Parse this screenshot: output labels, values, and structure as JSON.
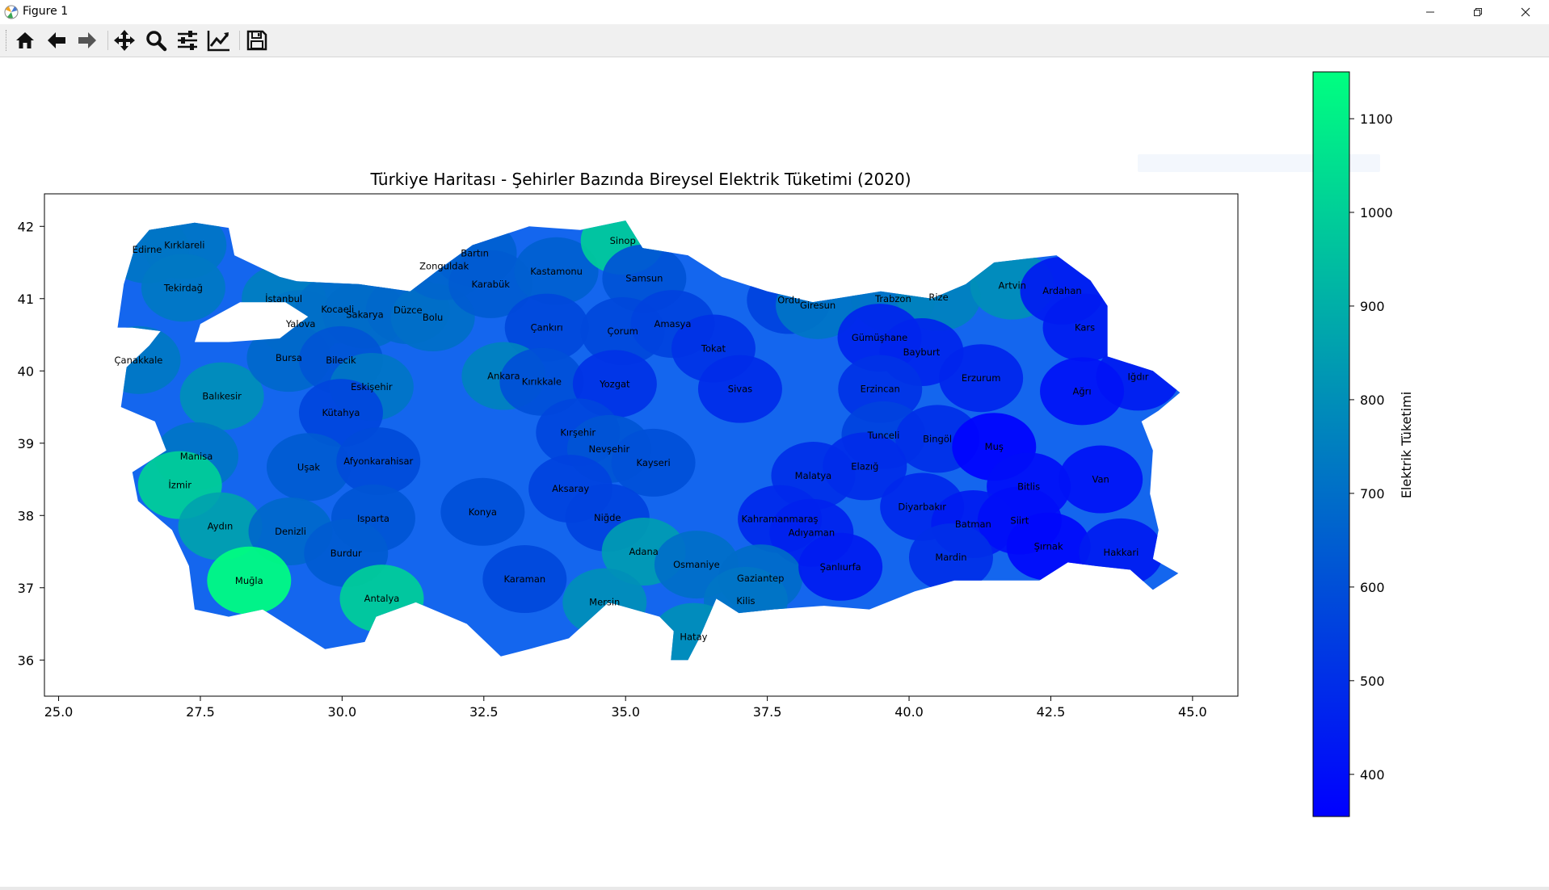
{
  "window": {
    "title": "Figure 1",
    "controls": [
      "minimize",
      "maximize",
      "close"
    ]
  },
  "toolbar": {
    "items": [
      {
        "name": "home",
        "icon": "home-icon"
      },
      {
        "name": "back",
        "icon": "arrow-left-icon"
      },
      {
        "name": "forward",
        "icon": "arrow-right-icon"
      },
      {
        "name": "pan",
        "icon": "move-icon"
      },
      {
        "name": "zoom",
        "icon": "magnifier-icon"
      },
      {
        "name": "configure-subplots",
        "icon": "sliders-icon"
      },
      {
        "name": "edit-axis",
        "icon": "line-chart-icon"
      },
      {
        "name": "save",
        "icon": "floppy-icon"
      }
    ]
  },
  "chart_data": {
    "type": "choropleth",
    "title": "Türkiye Haritası - Şehirler Bazında Bireysel Elektrik Tüketimi (2020)",
    "xlim": [
      24.75,
      45.8
    ],
    "ylim": [
      35.5,
      42.45
    ],
    "xticks": [
      "25.0",
      "27.5",
      "30.0",
      "32.5",
      "35.0",
      "37.5",
      "40.0",
      "42.5",
      "45.0"
    ],
    "yticks": [
      "36",
      "37",
      "38",
      "39",
      "40",
      "41",
      "42"
    ],
    "colorbar": {
      "label": "Elektrik Tüketimi",
      "min": 355,
      "max": 1150,
      "ticks": [
        "400",
        "500",
        "600",
        "700",
        "800",
        "900",
        "1000",
        "1100"
      ],
      "colormap": "winter",
      "color_low": "#0000ff",
      "color_high": "#00ff80"
    },
    "cities": [
      {
        "name": "Kırklareli",
        "lon": 27.22,
        "lat": 41.74,
        "value": 720
      },
      {
        "name": "Edirne",
        "lon": 26.56,
        "lat": 41.68,
        "value": 720
      },
      {
        "name": "Tekirdağ",
        "lon": 27.2,
        "lat": 41.15,
        "value": 730
      },
      {
        "name": "İstanbul",
        "lon": 28.97,
        "lat": 41.0,
        "value": 750
      },
      {
        "name": "Yalova",
        "lon": 29.27,
        "lat": 40.65,
        "value": 720
      },
      {
        "name": "Kocaeli",
        "lon": 29.92,
        "lat": 40.85,
        "value": 700
      },
      {
        "name": "Sakarya",
        "lon": 30.4,
        "lat": 40.78,
        "value": 690
      },
      {
        "name": "Düzce",
        "lon": 31.16,
        "lat": 40.84,
        "value": 680
      },
      {
        "name": "Bolu",
        "lon": 31.6,
        "lat": 40.74,
        "value": 700
      },
      {
        "name": "Zonguldak",
        "lon": 31.8,
        "lat": 41.45,
        "value": 670
      },
      {
        "name": "Bartın",
        "lon": 32.34,
        "lat": 41.63,
        "value": 650
      },
      {
        "name": "Karabük",
        "lon": 32.62,
        "lat": 41.2,
        "value": 640
      },
      {
        "name": "Kastamonu",
        "lon": 33.78,
        "lat": 41.38,
        "value": 650
      },
      {
        "name": "Sinop",
        "lon": 34.95,
        "lat": 41.8,
        "value": 990
      },
      {
        "name": "Samsun",
        "lon": 35.33,
        "lat": 41.28,
        "value": 610
      },
      {
        "name": "Çankırı",
        "lon": 33.61,
        "lat": 40.6,
        "value": 580
      },
      {
        "name": "Çorum",
        "lon": 34.95,
        "lat": 40.55,
        "value": 580
      },
      {
        "name": "Amasya",
        "lon": 35.83,
        "lat": 40.65,
        "value": 560
      },
      {
        "name": "Tokat",
        "lon": 36.55,
        "lat": 40.31,
        "value": 510
      },
      {
        "name": "Ordu",
        "lon": 37.88,
        "lat": 40.98,
        "value": 560
      },
      {
        "name": "Giresun",
        "lon": 38.39,
        "lat": 40.91,
        "value": 720
      },
      {
        "name": "Trabzon",
        "lon": 39.72,
        "lat": 41.0,
        "value": 720
      },
      {
        "name": "Rize",
        "lon": 40.52,
        "lat": 41.02,
        "value": 760
      },
      {
        "name": "Artvin",
        "lon": 41.82,
        "lat": 41.18,
        "value": 800
      },
      {
        "name": "Ardahan",
        "lon": 42.7,
        "lat": 41.11,
        "value": 440
      },
      {
        "name": "Gümüşhane",
        "lon": 39.48,
        "lat": 40.46,
        "value": 470
      },
      {
        "name": "Bayburt",
        "lon": 40.22,
        "lat": 40.26,
        "value": 470
      },
      {
        "name": "Erzurum",
        "lon": 41.27,
        "lat": 39.9,
        "value": 470
      },
      {
        "name": "Kars",
        "lon": 43.1,
        "lat": 40.6,
        "value": 440
      },
      {
        "name": "Iğdır",
        "lon": 44.04,
        "lat": 39.92,
        "value": 440
      },
      {
        "name": "Ağrı",
        "lon": 43.05,
        "lat": 39.72,
        "value": 410
      },
      {
        "name": "Çanakkale",
        "lon": 26.41,
        "lat": 40.15,
        "value": 730
      },
      {
        "name": "Balıkesir",
        "lon": 27.88,
        "lat": 39.65,
        "value": 800
      },
      {
        "name": "Bursa",
        "lon": 29.06,
        "lat": 40.18,
        "value": 680
      },
      {
        "name": "Bilecik",
        "lon": 29.98,
        "lat": 40.15,
        "value": 620
      },
      {
        "name": "Eskişehir",
        "lon": 30.52,
        "lat": 39.78,
        "value": 720
      },
      {
        "name": "Ankara",
        "lon": 32.85,
        "lat": 39.93,
        "value": 760
      },
      {
        "name": "Kırıkkale",
        "lon": 33.52,
        "lat": 39.85,
        "value": 600
      },
      {
        "name": "Yozgat",
        "lon": 34.81,
        "lat": 39.82,
        "value": 510
      },
      {
        "name": "Sivas",
        "lon": 37.02,
        "lat": 39.75,
        "value": 490
      },
      {
        "name": "Erzincan",
        "lon": 39.49,
        "lat": 39.75,
        "value": 510
      },
      {
        "name": "Tunceli",
        "lon": 39.55,
        "lat": 39.11,
        "value": 560
      },
      {
        "name": "Bingöl",
        "lon": 40.5,
        "lat": 39.06,
        "value": 500
      },
      {
        "name": "Muş",
        "lon": 41.5,
        "lat": 38.95,
        "value": 360
      },
      {
        "name": "Bitlis",
        "lon": 42.11,
        "lat": 38.4,
        "value": 400
      },
      {
        "name": "Van",
        "lon": 43.38,
        "lat": 38.5,
        "value": 410
      },
      {
        "name": "Kütahya",
        "lon": 29.98,
        "lat": 39.42,
        "value": 570
      },
      {
        "name": "Kırşehir",
        "lon": 34.16,
        "lat": 39.15,
        "value": 570
      },
      {
        "name": "Nevşehir",
        "lon": 34.71,
        "lat": 38.92,
        "value": 620
      },
      {
        "name": "Kayseri",
        "lon": 35.49,
        "lat": 38.73,
        "value": 600
      },
      {
        "name": "Malatya",
        "lon": 38.31,
        "lat": 38.55,
        "value": 500
      },
      {
        "name": "Elazığ",
        "lon": 39.22,
        "lat": 38.68,
        "value": 490
      },
      {
        "name": "Diyarbakır",
        "lon": 40.23,
        "lat": 38.12,
        "value": 480
      },
      {
        "name": "Batman",
        "lon": 41.13,
        "lat": 37.88,
        "value": 440
      },
      {
        "name": "Siirt",
        "lon": 41.95,
        "lat": 37.93,
        "value": 400
      },
      {
        "name": "Manisa",
        "lon": 27.43,
        "lat": 38.82,
        "value": 720
      },
      {
        "name": "İzmir",
        "lon": 27.14,
        "lat": 38.42,
        "value": 1000
      },
      {
        "name": "Uşak",
        "lon": 29.41,
        "lat": 38.67,
        "value": 640
      },
      {
        "name": "Afyonkarahisar",
        "lon": 30.64,
        "lat": 38.75,
        "value": 590
      },
      {
        "name": "Aksaray",
        "lon": 34.03,
        "lat": 38.37,
        "value": 560
      },
      {
        "name": "Aydın",
        "lon": 27.85,
        "lat": 37.85,
        "value": 860
      },
      {
        "name": "Denizli",
        "lon": 29.09,
        "lat": 37.78,
        "value": 680
      },
      {
        "name": "Isparta",
        "lon": 30.55,
        "lat": 37.96,
        "value": 620
      },
      {
        "name": "Konya",
        "lon": 32.48,
        "lat": 38.05,
        "value": 600
      },
      {
        "name": "Niğde",
        "lon": 34.68,
        "lat": 37.97,
        "value": 560
      },
      {
        "name": "Kahramanmaraş",
        "lon": 37.72,
        "lat": 37.95,
        "value": 480
      },
      {
        "name": "Adıyaman",
        "lon": 38.28,
        "lat": 37.76,
        "value": 460
      },
      {
        "name": "Burdur",
        "lon": 30.07,
        "lat": 37.48,
        "value": 640
      },
      {
        "name": "Adana",
        "lon": 35.32,
        "lat": 37.5,
        "value": 840
      },
      {
        "name": "Osmaniye",
        "lon": 36.25,
        "lat": 37.32,
        "value": 700
      },
      {
        "name": "Gaziantep",
        "lon": 37.38,
        "lat": 37.13,
        "value": 690
      },
      {
        "name": "Şanlıurfa",
        "lon": 38.79,
        "lat": 37.29,
        "value": 440
      },
      {
        "name": "Mardin",
        "lon": 40.74,
        "lat": 37.42,
        "value": 500
      },
      {
        "name": "Şırnak",
        "lon": 42.46,
        "lat": 37.57,
        "value": 380
      },
      {
        "name": "Hakkari",
        "lon": 43.74,
        "lat": 37.49,
        "value": 440
      },
      {
        "name": "Muğla",
        "lon": 28.36,
        "lat": 37.1,
        "value": 1150
      },
      {
        "name": "Antalya",
        "lon": 30.7,
        "lat": 36.85,
        "value": 1000
      },
      {
        "name": "Karaman",
        "lon": 33.22,
        "lat": 37.12,
        "value": 580
      },
      {
        "name": "Mersin",
        "lon": 34.63,
        "lat": 36.8,
        "value": 800
      },
      {
        "name": "Kilis",
        "lon": 37.12,
        "lat": 36.82,
        "value": 720
      },
      {
        "name": "Hatay",
        "lon": 36.2,
        "lat": 36.32,
        "value": 800
      }
    ]
  }
}
